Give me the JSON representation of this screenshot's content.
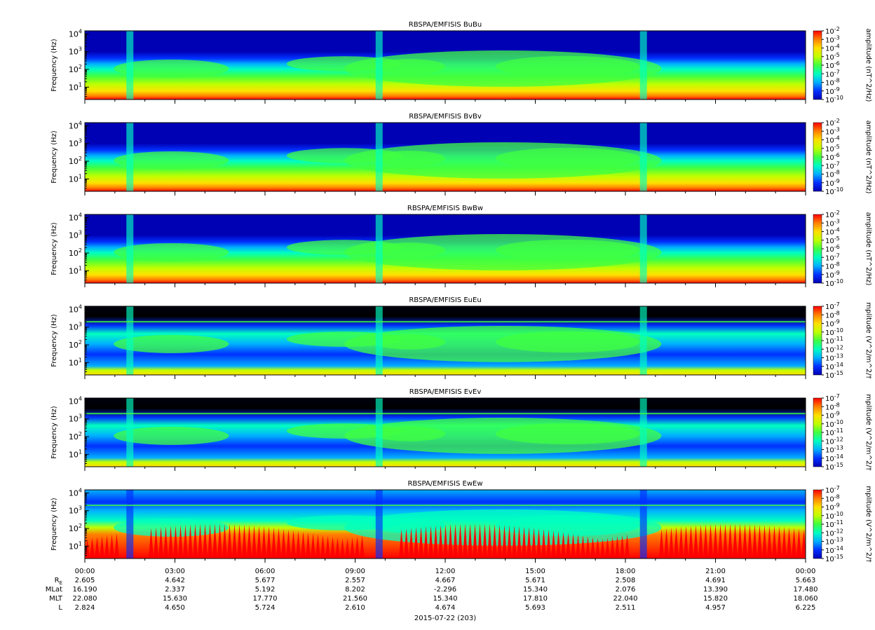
{
  "chart_data": {
    "type": "heatmap",
    "panels": [
      {
        "title": "RBSPA/EMFISIS  BuBu",
        "ylabel": "Frequency (Hz)",
        "cbar_label": "amplitude (nT^2/Hz)",
        "cbar_exponents": [
          "-2",
          "-3",
          "-4",
          "-5",
          "-6",
          "-7",
          "-8",
          "-9",
          "-10"
        ],
        "cbar_range": [
          -10,
          -2
        ],
        "kind": "B"
      },
      {
        "title": "RBSPA/EMFISIS  BvBv",
        "ylabel": "Frequency (Hz)",
        "cbar_label": "amplitude (nT^2/Hz)",
        "cbar_exponents": [
          "-2",
          "-3",
          "-4",
          "-5",
          "-6",
          "-7",
          "-8",
          "-9",
          "-10"
        ],
        "cbar_range": [
          -10,
          -2
        ],
        "kind": "B"
      },
      {
        "title": "RBSPA/EMFISIS  BwBw",
        "ylabel": "Frequency (Hz)",
        "cbar_label": "amplitude (nT^2/Hz)",
        "cbar_exponents": [
          "-2",
          "-3",
          "-4",
          "-5",
          "-6",
          "-7",
          "-8",
          "-9",
          "-10"
        ],
        "cbar_range": [
          -10,
          -2
        ],
        "kind": "B"
      },
      {
        "title": "RBSPA/EMFISIS  EuEu",
        "ylabel": "Frequency (Hz)",
        "cbar_label": "mplitude (V^2/m^2/†",
        "cbar_exponents": [
          "-7",
          "-8",
          "-9",
          "-10",
          "-11",
          "-12",
          "-13",
          "-14",
          "-15"
        ],
        "cbar_range": [
          -15,
          -7
        ],
        "kind": "E"
      },
      {
        "title": "RBSPA/EMFISIS  EvEv",
        "ylabel": "Frequency (Hz)",
        "cbar_label": "mplitude (V^2/m^2/†",
        "cbar_exponents": [
          "-7",
          "-8",
          "-9",
          "-10",
          "-11",
          "-12",
          "-13",
          "-14",
          "-15"
        ],
        "cbar_range": [
          -15,
          -7
        ],
        "kind": "E"
      },
      {
        "title": "RBSPA/EMFISIS  EwEw",
        "ylabel": "Frequency (Hz)",
        "cbar_label": "mplitude (V^2/m^2/†",
        "cbar_exponents": [
          "-7",
          "-8",
          "-9",
          "-10",
          "-11",
          "-12",
          "-13",
          "-14",
          "-15"
        ],
        "cbar_range": [
          -15,
          -7
        ],
        "kind": "Ew"
      }
    ],
    "y_axis": {
      "scale": "log",
      "ylim": [
        2,
        15000
      ],
      "ticks": [
        {
          "base": "10",
          "exp": "1",
          "value": 10
        },
        {
          "base": "10",
          "exp": "2",
          "value": 100
        },
        {
          "base": "10",
          "exp": "3",
          "value": 1000
        },
        {
          "base": "10",
          "exp": "4",
          "value": 10000
        }
      ]
    },
    "x_axis": {
      "xlim": [
        "00:00",
        "24:00"
      ],
      "tick_labels": [
        "00:00",
        "03:00",
        "06:00",
        "09:00",
        "12:00",
        "15:00",
        "18:00",
        "21:00",
        "00:00"
      ]
    },
    "ephemeris": {
      "rows": [
        {
          "label": "R",
          "sub": "E",
          "values": [
            "2.605",
            "4.642",
            "5.677",
            "2.557",
            "4.667",
            "5.671",
            "2.508",
            "4.691",
            "5.663"
          ]
        },
        {
          "label": "MLat",
          "values": [
            "16.190",
            "2.337",
            "5.192",
            "8.202",
            "-2.296",
            "15.340",
            "2.076",
            "13.390",
            "17.480"
          ]
        },
        {
          "label": "MLT",
          "values": [
            "22.080",
            "15.630",
            "17.770",
            "21.560",
            "15.340",
            "17.810",
            "22.040",
            "15.820",
            "18.060"
          ]
        },
        {
          "label": "L",
          "values": [
            "2.824",
            "4.650",
            "5.724",
            "2.610",
            "4.674",
            "5.693",
            "2.511",
            "4.957",
            "6.225"
          ]
        }
      ]
    },
    "date_label": "2015-07-22 (203)",
    "colormap": [
      "#0000b4",
      "#0030ff",
      "#00b0ff",
      "#00ffc0",
      "#40ff40",
      "#c0ff00",
      "#ffe000",
      "#ff8000",
      "#ff0000"
    ],
    "perigee_hours": [
      1.5,
      9.8,
      18.6
    ]
  }
}
